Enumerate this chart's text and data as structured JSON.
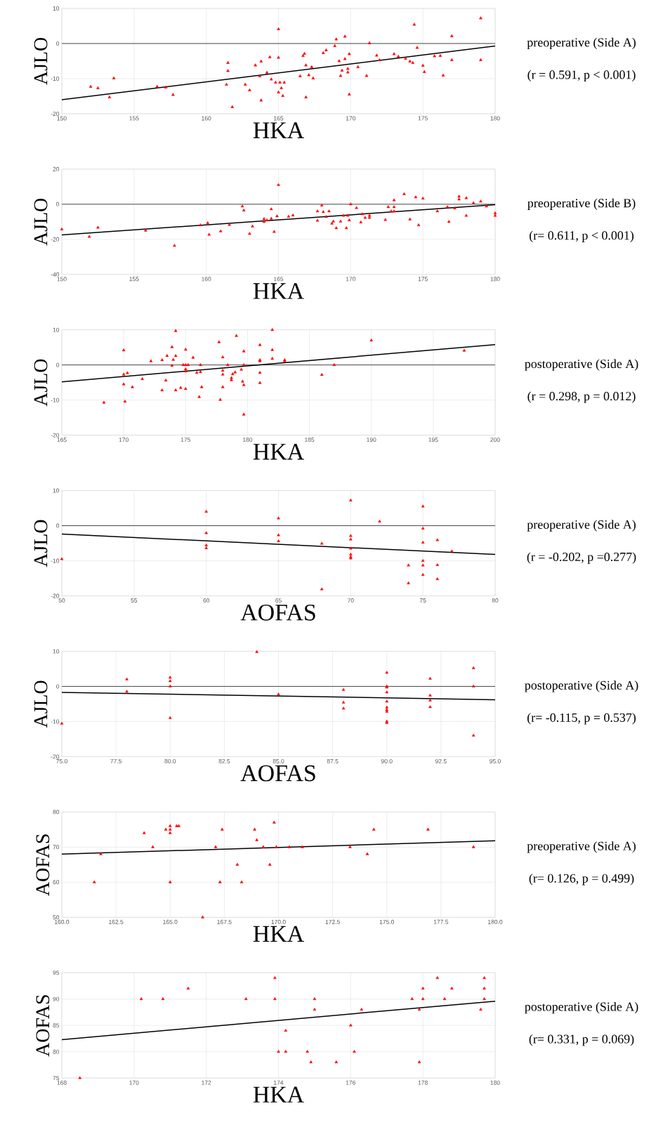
{
  "chart_data": [
    {
      "type": "scatter",
      "xlabel": "HKA",
      "ylabel": "AJLO",
      "xlim": [
        150,
        180
      ],
      "ylim": [
        -20,
        10
      ],
      "xticks": [
        150,
        155,
        160,
        165,
        170,
        175,
        180
      ],
      "yticks": [
        -20,
        -10,
        0,
        10
      ],
      "grid": true,
      "annotations": [
        "preoperative (Side A)",
        "(r = 0.591, p < 0.001)"
      ],
      "ref_lines": [
        {
          "axis": "y",
          "value": 0,
          "color": "#000000"
        }
      ],
      "series": [
        {
          "marker": "triangle",
          "color": "#ff0000",
          "x": [
            152.0,
            152.5,
            153.3,
            153.6,
            156.6,
            157.2,
            157.7,
            161.5,
            161.5,
            161.4,
            161.8,
            162.7,
            163.0,
            163.4,
            163.8,
            163.8,
            164.2,
            164.4,
            164.5,
            165.0,
            165.0,
            164.8,
            165.1,
            165.2,
            165.0,
            165.3,
            165.4,
            163.7,
            166.5,
            166.7,
            166.8,
            166.9,
            166.9,
            167.1,
            167.3,
            167.4,
            168.1,
            168.3,
            168.9,
            169.0,
            169.2,
            169.3,
            169.4,
            169.6,
            169.6,
            169.8,
            169.8,
            169.9,
            169.9,
            170.5,
            171.1,
            171.3,
            171.8,
            172.0,
            173.0,
            173.3,
            173.8,
            174.1,
            174.3,
            174.4,
            174.6,
            175.0,
            175.1,
            175.8,
            176.2,
            176.4,
            177.0,
            177.0,
            179.0,
            179.0
          ],
          "values": [
            -12.3,
            -12.7,
            -15.3,
            -9.9,
            -12.3,
            -12.5,
            -14.6,
            -5.5,
            -7.8,
            -11.7,
            -18.1,
            -11.7,
            -13.3,
            -6.2,
            -5.1,
            -16.2,
            -8.3,
            -3.9,
            -10.2,
            4.1,
            -4.0,
            -11.1,
            -11.1,
            -12.7,
            -13.9,
            -14.9,
            -11.1,
            -9.3,
            -9.3,
            -3.5,
            -2.9,
            -6.2,
            -15.3,
            -9.0,
            -6.7,
            -9.9,
            -2.7,
            -1.9,
            -0.7,
            1.2,
            -5.0,
            -9.2,
            -7.7,
            2.0,
            -4.4,
            -7.2,
            -8.2,
            -3.0,
            -14.5,
            -6.7,
            -9.2,
            0.1,
            -3.4,
            -4.7,
            -3.0,
            -3.7,
            -4.3,
            -5.1,
            -5.5,
            5.4,
            -1.2,
            -6.3,
            -8.1,
            -3.6,
            -3.5,
            -9.1,
            -4.7,
            2.1,
            7.2,
            -4.7
          ]
        },
        {
          "type": "line",
          "marker": "none",
          "color": "#000000",
          "x": [
            150,
            180
          ],
          "values": [
            -16,
            -0.7
          ]
        }
      ]
    },
    {
      "type": "scatter",
      "xlabel": "HKA",
      "ylabel": "AJLO",
      "xlim": [
        150,
        180
      ],
      "ylim": [
        -40,
        20
      ],
      "xticks": [
        150,
        155,
        160,
        165,
        170,
        175,
        180
      ],
      "yticks": [
        -40,
        -20,
        0,
        20
      ],
      "grid": true,
      "annotations": [
        "preoperative (Side B)",
        "(r= 0.611, p < 0.001)"
      ],
      "ref_lines": [
        {
          "axis": "y",
          "value": 0,
          "color": "#000000"
        }
      ],
      "series": [
        {
          "marker": "triangle",
          "color": "#ff0000",
          "x": [
            150.0,
            151.9,
            152.5,
            155.8,
            157.8,
            159.6,
            160.1,
            160.2,
            161.0,
            161.6,
            162.5,
            162.6,
            163.0,
            163.2,
            164.0,
            164.0,
            164.2,
            164.5,
            164.5,
            164.7,
            164.9,
            165.0,
            165.7,
            166.0,
            167.7,
            167.7,
            168.0,
            168.1,
            168.3,
            168.5,
            168.7,
            168.8,
            169.0,
            169.3,
            169.5,
            169.7,
            169.8,
            169.9,
            170.0,
            170.4,
            170.7,
            170.8,
            171.0,
            171.3,
            171.3,
            172.4,
            172.6,
            172.8,
            173.0,
            173.0,
            173.0,
            173.7,
            174.1,
            174.5,
            174.7,
            175.0,
            176.0,
            176.7,
            176.8,
            177.2,
            177.5,
            177.5,
            178.0,
            178.0,
            178.5,
            179.0,
            179.4,
            180.0,
            180.0
          ],
          "values": [
            -14.3,
            -18.5,
            -13.3,
            -15.0,
            -23.6,
            -11.9,
            -10.7,
            -17.3,
            -15.4,
            -11.7,
            -1.2,
            -3.5,
            -16.8,
            -12.6,
            -8.4,
            -10.0,
            -9.1,
            -2.8,
            -8.2,
            -15.7,
            -6.8,
            11.0,
            -7.0,
            -6.3,
            -4.0,
            -9.3,
            -0.7,
            -4.4,
            -7.2,
            -4.0,
            -11.0,
            -9.8,
            -13.6,
            -9.8,
            -6.5,
            -13.6,
            -6.5,
            -9.1,
            0.0,
            -2.1,
            -10.3,
            -5.6,
            -7.7,
            -6.5,
            -7.7,
            -8.9,
            -1.6,
            -4.0,
            2.3,
            -1.6,
            -4.0,
            5.8,
            -8.6,
            4.0,
            -11.9,
            3.3,
            -4.0,
            -1.6,
            -10.0,
            -2.3,
            4.4,
            2.8,
            3.5,
            -6.5,
            0.7,
            1.6,
            -1.2,
            -5.1,
            -6.5
          ]
        },
        {
          "type": "line",
          "marker": "none",
          "color": "#000000",
          "x": [
            150,
            180
          ],
          "values": [
            -17.5,
            -0.3
          ]
        }
      ]
    },
    {
      "type": "scatter",
      "xlabel": "HKA",
      "ylabel": "AJLO",
      "xlim": [
        165,
        200
      ],
      "ylim": [
        -20,
        10
      ],
      "xticks": [
        165,
        170,
        175,
        180,
        185,
        190,
        195,
        200
      ],
      "yticks": [
        -20,
        -10,
        0,
        10
      ],
      "grid": true,
      "annotations": [
        "postoperative (Side A)",
        "(r = 0.298, p = 0.012)"
      ],
      "ref_lines": [
        {
          "axis": "y",
          "value": 0,
          "color": "#000000"
        }
      ],
      "series": [
        {
          "marker": "triangle",
          "color": "#ff0000",
          "x": [
            168.4,
            170,
            170,
            170,
            170.1,
            170.3,
            170.7,
            171.5,
            172.2,
            173.1,
            173.1,
            173.4,
            173.5,
            173.9,
            173.9,
            174,
            174.2,
            174.2,
            174.2,
            174.6,
            174.8,
            175,
            175,
            175,
            175,
            175,
            175.2,
            175.6,
            175.9,
            176.1,
            176.3,
            176.2,
            176.2,
            177.7,
            177.8,
            178,
            178,
            178,
            178,
            178.4,
            178.7,
            178.7,
            178.8,
            179,
            179.1,
            179.5,
            179.6,
            179.7,
            179.7,
            179.7,
            179.7,
            181,
            181,
            181,
            181,
            181,
            182,
            182,
            182,
            183,
            183,
            186,
            187,
            190,
            197.5
          ],
          "values": [
            -10.7,
            4.2,
            -2.7,
            -5.5,
            -10.4,
            -2.3,
            -6.3,
            -4,
            1.1,
            1.4,
            -7.2,
            -4.4,
            2.6,
            5.1,
            -0.2,
            1.5,
            9.7,
            2.6,
            -7.2,
            -6.5,
            0,
            4.4,
            0,
            -1.2,
            -1.8,
            -6.8,
            0,
            2.1,
            -2.2,
            -9.1,
            -6.3,
            -2,
            0,
            6.5,
            -9.9,
            2.2,
            -1.6,
            -2.7,
            -6.3,
            0,
            -3.7,
            -4.3,
            -2.6,
            -2.1,
            8.3,
            -1.3,
            -4.7,
            3.9,
            0,
            -5.7,
            -14.1,
            5.7,
            1.4,
            1.1,
            -2.2,
            -5.1,
            10,
            4.3,
            1.8,
            1.4,
            1.0,
            -2.8,
            0,
            7,
            4.1
          ]
        },
        {
          "type": "line",
          "marker": "none",
          "color": "#000000",
          "x": [
            165,
            200
          ],
          "values": [
            -4.8,
            5.8
          ]
        }
      ]
    },
    {
      "type": "scatter",
      "xlabel": "AOFAS",
      "ylabel": "AJLO",
      "xlim": [
        50,
        80
      ],
      "ylim": [
        -20,
        10
      ],
      "xticks": [
        50,
        55,
        60,
        65,
        70,
        75,
        80
      ],
      "yticks": [
        -20,
        -10,
        0,
        10
      ],
      "grid": true,
      "annotations": [
        "preoperative (Side A)",
        "(r = -0.202, p =0.277)"
      ],
      "ref_lines": [
        {
          "axis": "y",
          "value": 0,
          "color": "#000000"
        }
      ],
      "series": [
        {
          "marker": "triangle",
          "color": "#ff0000",
          "x": [
            50,
            60,
            60,
            60,
            60,
            65,
            65,
            65,
            68,
            68,
            70,
            70,
            70,
            70,
            70,
            70,
            70,
            72,
            74,
            74,
            75,
            75,
            75,
            75,
            75,
            75,
            76,
            76,
            76,
            77
          ],
          "values": [
            -9.5,
            4,
            -2.1,
            -5.6,
            -6.4,
            2.1,
            -2.7,
            -4.4,
            -5.1,
            -18.1,
            7.2,
            -2.9,
            -3.9,
            -6.5,
            -8.2,
            -8.9,
            -9.3,
            1.2,
            -11.3,
            -16.4,
            5.5,
            -0.8,
            -4.8,
            -10,
            -11.3,
            -14,
            -4.1,
            -11.2,
            -15.2,
            -7.3
          ]
        },
        {
          "type": "line",
          "marker": "none",
          "color": "#000000",
          "x": [
            50,
            80
          ],
          "values": [
            -2.4,
            -8.2
          ]
        }
      ]
    },
    {
      "type": "scatter",
      "xlabel": "AOFAS",
      "ylabel": "AJLO",
      "xlim": [
        75,
        95
      ],
      "ylim": [
        -20,
        10
      ],
      "xticks": [
        {
          "value": 75,
          "label": "75.0"
        },
        {
          "value": 77.5,
          "label": "77.5"
        },
        {
          "value": 80,
          "label": "80.0"
        },
        {
          "value": 82.5,
          "label": "82.5"
        },
        {
          "value": 85,
          "label": "85.0"
        },
        {
          "value": 87.5,
          "label": "87.5"
        },
        {
          "value": 90,
          "label": "90.0"
        },
        {
          "value": 92.5,
          "label": "92.5"
        },
        {
          "value": 95,
          "label": "95.0"
        }
      ],
      "yticks": [
        -20,
        -10,
        0,
        10
      ],
      "grid": true,
      "annotations": [
        "postoperative (Side A)",
        "(r= -0.115, p = 0.537)"
      ],
      "ref_lines": [
        {
          "axis": "y",
          "value": 0,
          "color": "#000000"
        }
      ],
      "series": [
        {
          "marker": "triangle",
          "color": "#ff0000",
          "x": [
            75,
            78,
            78,
            80,
            80,
            80,
            80,
            84,
            85,
            88,
            88,
            88,
            90,
            90,
            90,
            90,
            90,
            90,
            90,
            90,
            90,
            90,
            92,
            92,
            92,
            92,
            94,
            94,
            94
          ],
          "values": [
            -10.6,
            2.0,
            -1.5,
            2.5,
            1.5,
            0,
            -9,
            9.8,
            -2.3,
            -1,
            -4.6,
            -6.3,
            3.9,
            0,
            -0.3,
            -1.7,
            -4.3,
            -6,
            -6.7,
            -7.2,
            -10,
            -10.4,
            2.2,
            -2.6,
            -4,
            -5.9,
            5.2,
            0,
            -14
          ]
        },
        {
          "type": "line",
          "marker": "none",
          "color": "#000000",
          "x": [
            75,
            95
          ],
          "values": [
            -1.7,
            -3.8
          ]
        }
      ]
    },
    {
      "type": "scatter",
      "xlabel": "HKA",
      "ylabel": "AOFAS",
      "xlim": [
        160,
        180
      ],
      "ylim": [
        50,
        80
      ],
      "xticks": [
        {
          "value": 160,
          "label": "160.0"
        },
        {
          "value": 162.5,
          "label": "162.5"
        },
        {
          "value": 165,
          "label": "165.0"
        },
        {
          "value": 167.5,
          "label": "167.5"
        },
        {
          "value": 170,
          "label": "170.0"
        },
        {
          "value": 172.5,
          "label": "172.5"
        },
        {
          "value": 175,
          "label": "175.0"
        },
        {
          "value": 177.5,
          "label": "177.5"
        },
        {
          "value": 180,
          "label": "180.0"
        }
      ],
      "yticks": [
        50,
        60,
        70,
        80
      ],
      "grid": true,
      "annotations": [
        "preoperative (Side A)",
        "(r= 0.126, p = 0.499)"
      ],
      "series": [
        {
          "marker": "triangle",
          "color": "#ff0000",
          "x": [
            161.5,
            161.8,
            163.8,
            164.2,
            164.8,
            165.0,
            165.0,
            165.0,
            165.0,
            165.3,
            165.4,
            166.5,
            167.1,
            167.3,
            167.4,
            168.1,
            168.3,
            168.9,
            169.0,
            169.3,
            169.6,
            169.8,
            169.9,
            170.5,
            171.1,
            173.3,
            174.1,
            174.4,
            176.9,
            179.0
          ],
          "values": [
            60,
            68,
            74,
            70,
            75,
            76,
            75,
            74,
            60,
            76,
            76,
            50,
            70,
            60,
            75,
            65,
            60,
            75,
            72,
            70,
            65,
            77,
            70,
            70,
            70,
            70,
            68,
            75,
            75,
            70
          ]
        },
        {
          "type": "line",
          "marker": "none",
          "color": "#000000",
          "x": [
            160,
            180
          ],
          "values": [
            68,
            71.8
          ]
        }
      ]
    },
    {
      "type": "scatter",
      "xlabel": "HKA",
      "ylabel": "AOFAS",
      "xlim": [
        168,
        180
      ],
      "ylim": [
        75,
        95
      ],
      "xticks": [
        168,
        170,
        172,
        174,
        176,
        178,
        180
      ],
      "yticks": [
        75,
        80,
        85,
        90,
        95
      ],
      "grid": true,
      "annotations": [
        "postoperative (Side A)",
        "(r= 0.331, p = 0.069)"
      ],
      "series": [
        {
          "marker": "triangle",
          "color": "#ff0000",
          "x": [
            168.5,
            170.2,
            170.8,
            171.5,
            173.1,
            173.9,
            173.9,
            174.0,
            174.2,
            174.2,
            174.8,
            174.9,
            175.0,
            175.0,
            175.6,
            176.0,
            176.1,
            176.3,
            177.7,
            177.9,
            177.9,
            178.0,
            178.0,
            178.4,
            178.6,
            178.8,
            179.6,
            179.7,
            179.7,
            179.7
          ],
          "values": [
            75,
            90,
            90,
            92,
            90,
            94,
            90,
            80,
            84,
            80,
            80,
            78,
            90,
            88,
            78,
            85,
            80,
            88,
            90,
            88,
            78,
            92,
            90,
            94,
            90,
            92,
            88,
            94,
            92,
            90
          ]
        },
        {
          "type": "line",
          "marker": "none",
          "color": "#000000",
          "x": [
            168,
            180
          ],
          "values": [
            82.3,
            89.6
          ]
        }
      ]
    }
  ]
}
